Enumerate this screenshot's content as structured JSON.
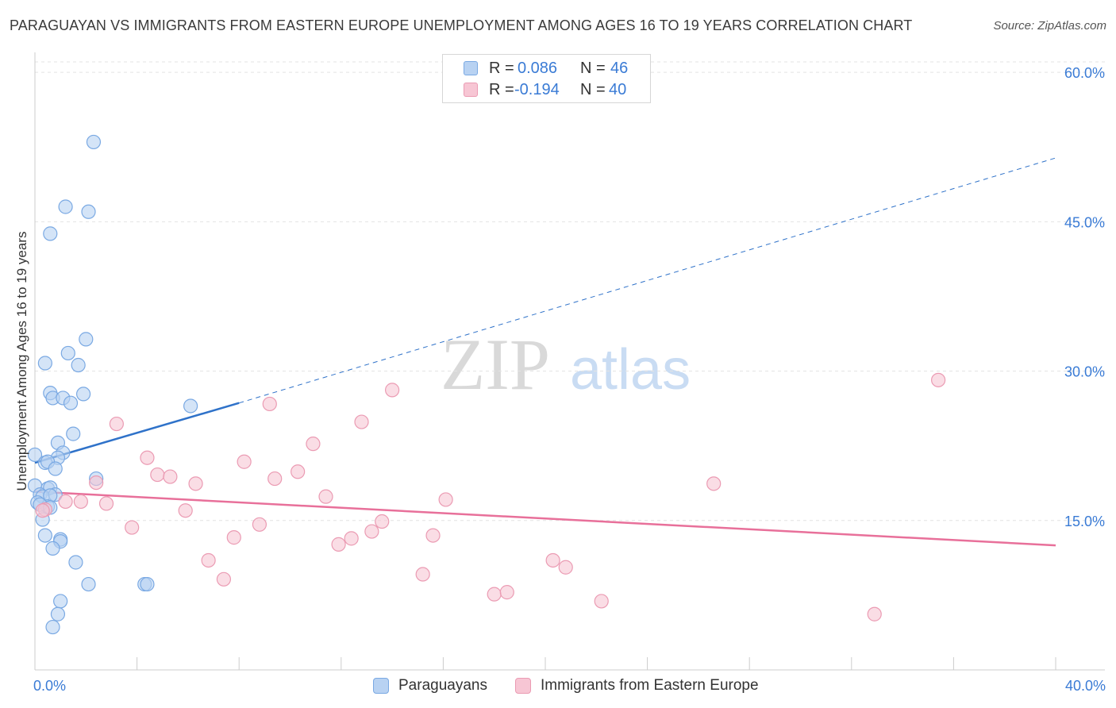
{
  "title": "PARAGUAYAN VS IMMIGRANTS FROM EASTERN EUROPE UNEMPLOYMENT AMONG AGES 16 TO 19 YEARS CORRELATION CHART",
  "source": "Source: ZipAtlas.com",
  "watermark": {
    "zip": "ZIP",
    "atlas": "atlas"
  },
  "legend": {
    "r_label": "R =",
    "n_label": "N =",
    "rows": [
      {
        "r": "0.086",
        "n": "46"
      },
      {
        "r": "-0.194",
        "n": "40"
      }
    ]
  },
  "bottom_legend": [
    "Paraguayans",
    "Immigrants from Eastern Europe"
  ],
  "colors": {
    "blue_fill": "#b8d2f2",
    "blue_stroke": "#7aa9e3",
    "blue_line": "#2f72c9",
    "pink_fill": "#f7c6d4",
    "pink_stroke": "#eb9bb3",
    "pink_line": "#e8709a",
    "axis_label": "#3a7bd5",
    "grid": "#e3e3e3"
  },
  "chart_data": {
    "type": "scatter",
    "title": "PARAGUAYAN VS IMMIGRANTS FROM EASTERN EUROPE UNEMPLOYMENT AMONG AGES 16 TO 19 YEARS CORRELATION CHART",
    "xlabel": "",
    "ylabel": "Unemployment Among Ages 16 to 19 years",
    "xlim": [
      0,
      40
    ],
    "ylim": [
      0,
      62
    ],
    "x_tick_labels": [
      {
        "value": 0,
        "label": "0.0%"
      },
      {
        "value": 40,
        "label": "40.0%"
      }
    ],
    "y_tick_labels": [
      {
        "value": 15,
        "label": "15.0%"
      },
      {
        "value": 30,
        "label": "30.0%"
      },
      {
        "value": 45,
        "label": "45.0%"
      },
      {
        "value": 60,
        "label": "60.0%"
      }
    ],
    "series": [
      {
        "name": "Paraguayans",
        "r": 0.086,
        "n": 46,
        "trend": {
          "x": [
            0,
            8
          ],
          "y": [
            20.8,
            26.8
          ],
          "extended_to": [
            40,
            51.4
          ]
        },
        "points": [
          [
            2.3,
            53.0
          ],
          [
            1.2,
            46.5
          ],
          [
            2.1,
            46.0
          ],
          [
            0.6,
            43.8
          ],
          [
            2.0,
            33.2
          ],
          [
            1.3,
            31.8
          ],
          [
            1.7,
            30.6
          ],
          [
            0.4,
            30.8
          ],
          [
            0.6,
            27.8
          ],
          [
            0.7,
            27.3
          ],
          [
            1.1,
            27.3
          ],
          [
            1.4,
            26.8
          ],
          [
            1.9,
            27.7
          ],
          [
            6.1,
            26.5
          ],
          [
            1.5,
            23.7
          ],
          [
            0.9,
            22.8
          ],
          [
            1.1,
            21.8
          ],
          [
            0.0,
            21.6
          ],
          [
            0.9,
            21.3
          ],
          [
            0.4,
            20.8
          ],
          [
            0.5,
            20.9
          ],
          [
            0.8,
            20.2
          ],
          [
            2.4,
            19.2
          ],
          [
            0.0,
            18.5
          ],
          [
            0.5,
            18.2
          ],
          [
            0.6,
            18.3
          ],
          [
            0.2,
            17.6
          ],
          [
            0.3,
            17.4
          ],
          [
            0.8,
            17.6
          ],
          [
            0.6,
            17.5
          ],
          [
            0.1,
            16.8
          ],
          [
            0.5,
            16.4
          ],
          [
            0.2,
            16.6
          ],
          [
            0.6,
            16.3
          ],
          [
            0.3,
            15.1
          ],
          [
            0.4,
            13.5
          ],
          [
            1.0,
            13.1
          ],
          [
            1.0,
            12.9
          ],
          [
            0.7,
            12.2
          ],
          [
            1.6,
            10.8
          ],
          [
            2.1,
            8.6
          ],
          [
            4.3,
            8.6
          ],
          [
            4.4,
            8.6
          ],
          [
            1.0,
            6.9
          ],
          [
            0.9,
            5.6
          ],
          [
            0.7,
            4.3
          ]
        ]
      },
      {
        "name": "Immigrants from Eastern Europe",
        "r": -0.194,
        "n": 40,
        "trend": {
          "x": [
            0,
            40
          ],
          "y": [
            17.9,
            12.5
          ]
        },
        "points": [
          [
            0.4,
            16.1
          ],
          [
            0.3,
            16.0
          ],
          [
            1.2,
            16.9
          ],
          [
            1.8,
            16.9
          ],
          [
            2.4,
            18.8
          ],
          [
            2.8,
            16.7
          ],
          [
            3.2,
            24.7
          ],
          [
            3.8,
            14.3
          ],
          [
            4.4,
            21.3
          ],
          [
            4.8,
            19.6
          ],
          [
            5.3,
            19.4
          ],
          [
            5.9,
            16.0
          ],
          [
            6.3,
            18.7
          ],
          [
            6.8,
            11.0
          ],
          [
            7.4,
            9.1
          ],
          [
            7.8,
            13.3
          ],
          [
            8.2,
            20.9
          ],
          [
            8.8,
            14.6
          ],
          [
            9.2,
            26.7
          ],
          [
            9.4,
            19.2
          ],
          [
            10.3,
            19.9
          ],
          [
            10.9,
            22.7
          ],
          [
            11.4,
            17.4
          ],
          [
            11.9,
            12.6
          ],
          [
            12.4,
            13.2
          ],
          [
            12.8,
            24.9
          ],
          [
            13.2,
            13.9
          ],
          [
            13.6,
            14.9
          ],
          [
            14.0,
            28.1
          ],
          [
            15.2,
            9.6
          ],
          [
            15.6,
            13.5
          ],
          [
            16.1,
            17.1
          ],
          [
            18.0,
            7.6
          ],
          [
            18.5,
            7.8
          ],
          [
            20.3,
            11.0
          ],
          [
            20.8,
            10.3
          ],
          [
            22.2,
            6.9
          ],
          [
            26.6,
            18.7
          ],
          [
            32.9,
            5.6
          ],
          [
            35.4,
            29.1
          ]
        ]
      }
    ],
    "grid": true,
    "legend": "top-center"
  }
}
